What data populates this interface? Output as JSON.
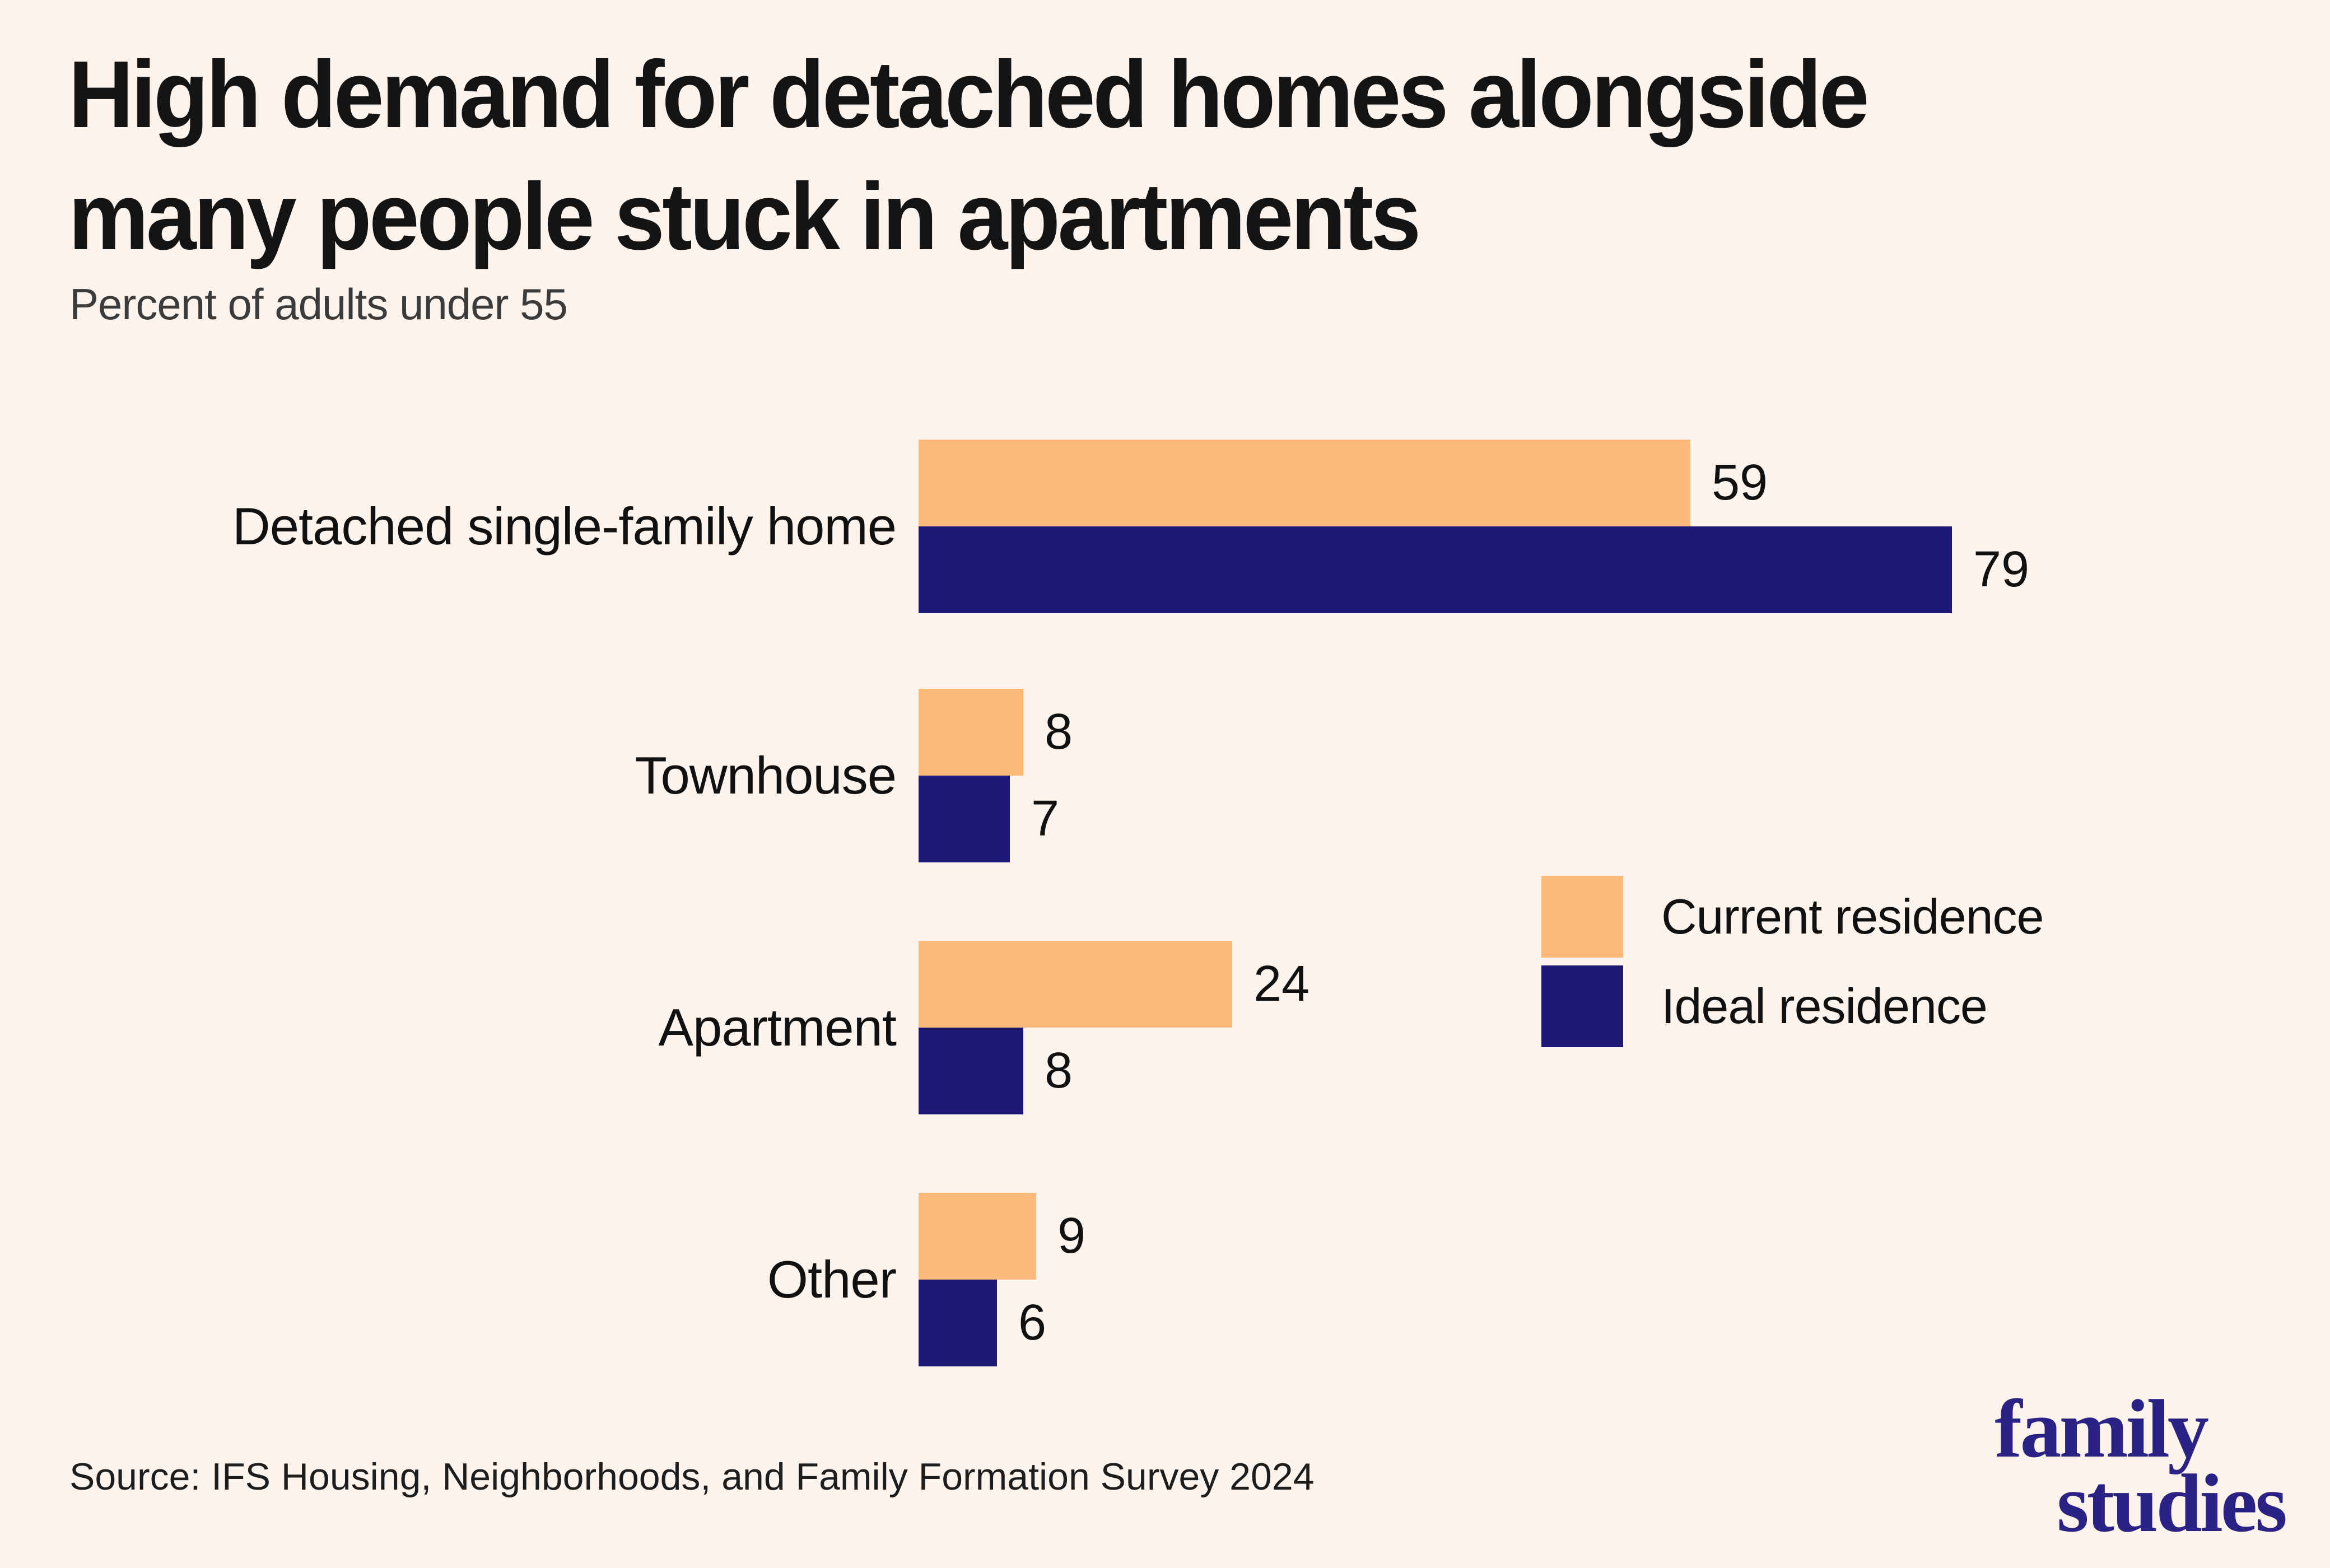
{
  "header": {
    "title_lines": [
      "High demand for detached homes alongside",
      "many people stuck in apartments"
    ],
    "subtitle": "Percent of adults under 55"
  },
  "chart_data": {
    "type": "bar",
    "orientation": "horizontal",
    "title": "High demand for detached homes alongside many people stuck in apartments",
    "subtitle": "Percent of adults under 55",
    "categories": [
      "Detached single-family home",
      "Townhouse",
      "Apartment",
      "Other"
    ],
    "series": [
      {
        "name": "Current residence",
        "color": "#fdb87c",
        "values": [
          59,
          8,
          24,
          9
        ]
      },
      {
        "name": "Ideal residence",
        "color": "#1e1876",
        "values": [
          79,
          7,
          8,
          6
        ]
      }
    ],
    "value_axis": {
      "min": 0,
      "max_value_shown": 79,
      "axis_hidden": true,
      "unit": "percent of adults under 55"
    },
    "value_labels_shown": true,
    "legend_position": "middle-right",
    "grid": false
  },
  "footer": {
    "source": "Source: IFS Housing, Neighborhoods, and Family Formation Survey 2024",
    "logo_lines": [
      "family",
      "studies"
    ]
  },
  "colors": {
    "background": "#fcf3ec",
    "bar_current": "#fdb87c",
    "bar_ideal": "#1e1876",
    "logo": "#2a2284",
    "title_text": "#141414",
    "subtitle_text": "#3b3b3b",
    "source_text": "#1d1d1d"
  }
}
